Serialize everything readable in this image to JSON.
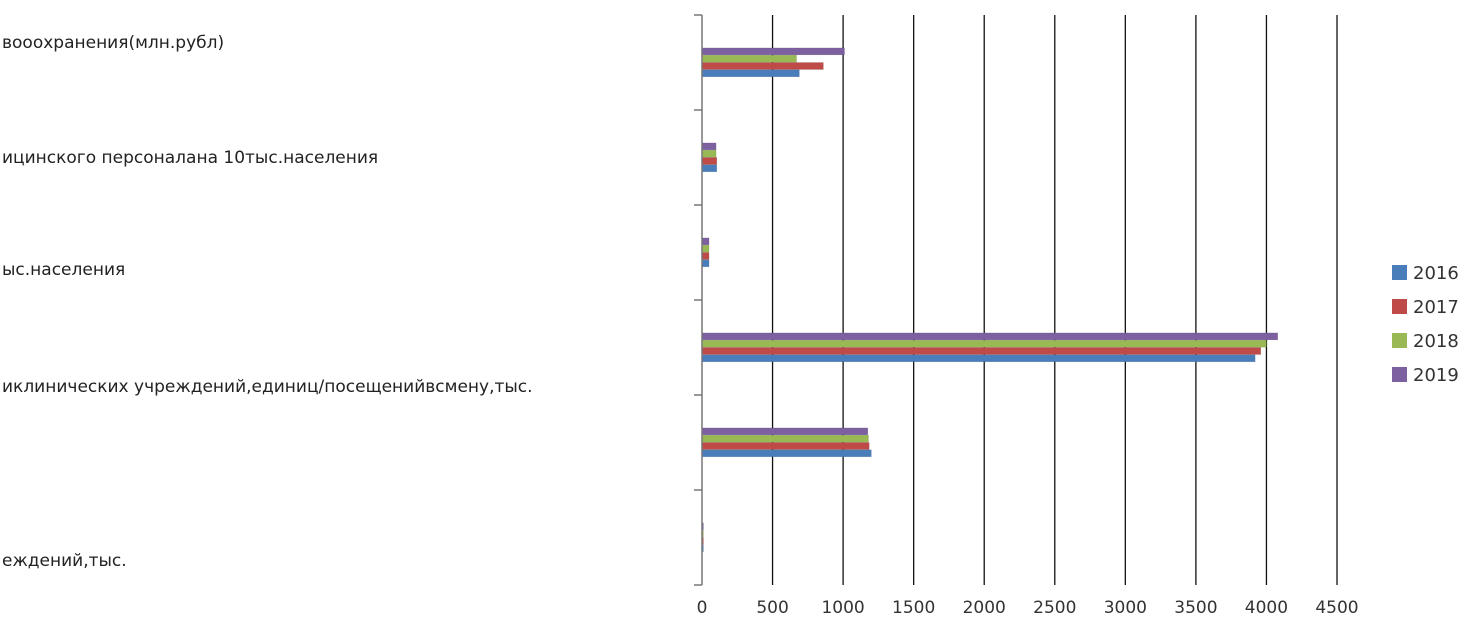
{
  "chart_data": {
    "type": "bar",
    "orientation": "horizontal",
    "categories": [
      "вооохранения(млн.рубл)",
      "ицинского персоналана 10тыс.населения",
      "ыс.населения",
      "иклинических учреждений,единиц/посещенийвсмену,тыс.",
      "",
      "еждений,тыс."
    ],
    "series": [
      {
        "name": "2016",
        "color": "#4a7ebb",
        "values": [
          690,
          105,
          50,
          3920,
          1200,
          10
        ]
      },
      {
        "name": "2017",
        "color": "#be4b48",
        "values": [
          860,
          105,
          50,
          3960,
          1185,
          10
        ]
      },
      {
        "name": "2018",
        "color": "#98b954",
        "values": [
          670,
          100,
          50,
          4000,
          1180,
          10
        ]
      },
      {
        "name": "2019",
        "color": "#7d60a0",
        "values": [
          1010,
          100,
          50,
          4080,
          1175,
          10
        ]
      }
    ],
    "xlim": [
      0,
      4500
    ],
    "xticks": [
      0,
      500,
      1000,
      1500,
      2000,
      2500,
      3000,
      3500,
      4000,
      4500
    ],
    "grid": true,
    "legend_position": "right"
  }
}
